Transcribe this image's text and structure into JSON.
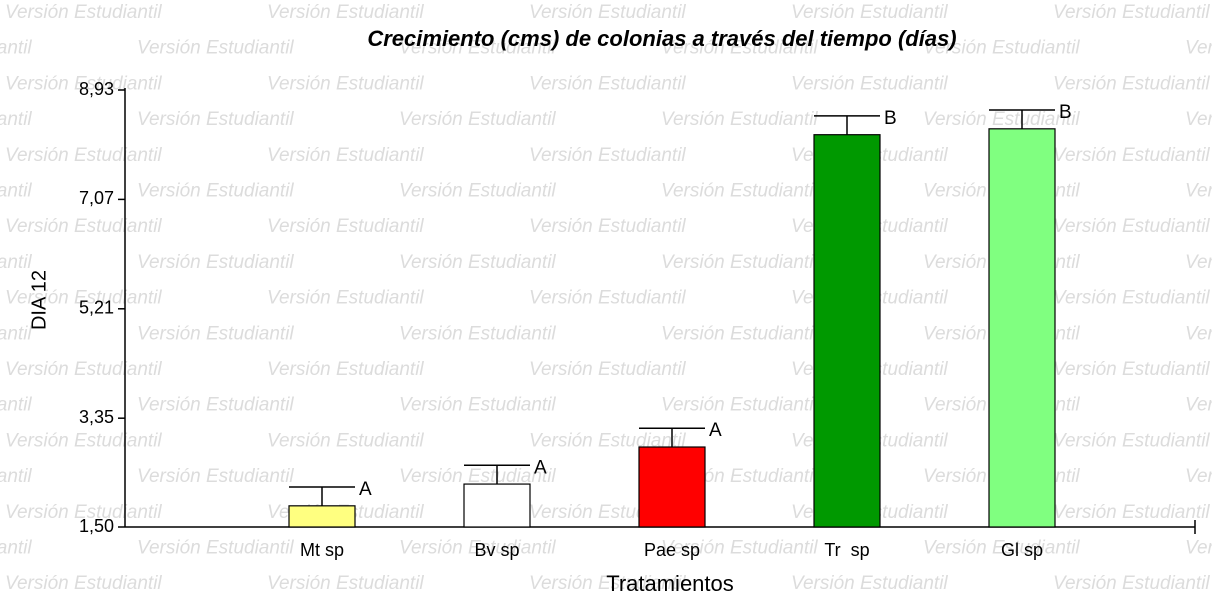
{
  "chart_data": {
    "type": "bar",
    "title": "Crecimiento (cms) de colonias a través del tiempo (días)",
    "watermark": "Versión Estudiantil",
    "x_label": "Tratamientos",
    "y_label": "DIA 12",
    "categories": [
      "Mt sp",
      "Bv sp",
      "Pae sp",
      "Tr  sp",
      "Gl sp"
    ],
    "values": [
      1.86,
      2.23,
      2.86,
      8.17,
      8.27
    ],
    "errors": [
      0.32,
      0.32,
      0.32,
      0.32,
      0.32
    ],
    "letters": [
      "A",
      "A",
      "A",
      "B",
      "B"
    ],
    "colors": [
      "#ffff80",
      "#ffffff",
      "#ff0000",
      "#009900",
      "#80ff80"
    ],
    "ylim": [
      1.5,
      8.93
    ],
    "yticks": [
      {
        "value": 1.5,
        "label": "1,50"
      },
      {
        "value": 3.35,
        "label": "3,35"
      },
      {
        "value": 5.21,
        "label": "5,21"
      },
      {
        "value": 7.07,
        "label": "7,07"
      },
      {
        "value": 8.93,
        "label": "8,93"
      }
    ]
  }
}
